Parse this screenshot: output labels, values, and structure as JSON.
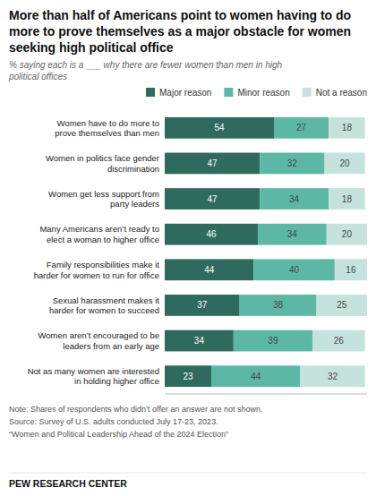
{
  "chart_data": {
    "type": "bar",
    "orientation": "horizontal",
    "stacked": true,
    "title": "More than half of Americans point to women having to do more to prove themselves as a major obstacle for women seeking high political office",
    "subtitle": "% saying each is a ___ why there are fewer women than men in high\npolitical offices",
    "categories": [
      "Women have to do more to\nprove themselves than men",
      "Women in politics face gender\ndiscrimination",
      "Women get less support from\nparty leaders",
      "Many Americans aren’t ready to\nelect a woman to higher office",
      "Family responsibilities make it\nharder for women to run for office",
      "Sexual harassment makes it\nharder for women to succeed",
      "Women aren’t encouraged to be\nleaders from an early age",
      "Not as many women are interested\nin holding higher office"
    ],
    "series": [
      {
        "name": "Major reason",
        "color": "#2e6b5e",
        "values": [
          54,
          47,
          47,
          46,
          44,
          37,
          34,
          23
        ]
      },
      {
        "name": "Minor reason",
        "color": "#5cb8a5",
        "values": [
          27,
          32,
          34,
          34,
          40,
          38,
          39,
          44
        ]
      },
      {
        "name": "Not a reason",
        "color": "#c5e3dc",
        "values": [
          18,
          20,
          18,
          20,
          16,
          25,
          26,
          32
        ]
      }
    ],
    "xlim": [
      0,
      100
    ],
    "data_labels": true,
    "tick_labels": false,
    "grid": false,
    "legend": "top",
    "annotations": [
      "Note: Shares of respondents who didn’t offer an answer are not shown.",
      "Source: Survey of U.S. adults conducted July 17-23, 2023.",
      "“Women and Political Leadership Ahead of the 2024 Election”",
      "PEW RESEARCH CENTER"
    ]
  }
}
